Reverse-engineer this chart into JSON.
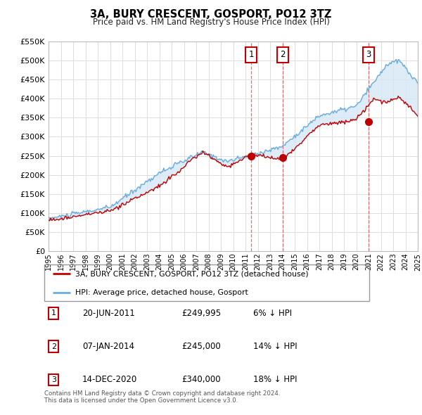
{
  "title": "3A, BURY CRESCENT, GOSPORT, PO12 3TZ",
  "subtitle": "Price paid vs. HM Land Registry's House Price Index (HPI)",
  "ylabel_ticks": [
    "£0",
    "£50K",
    "£100K",
    "£150K",
    "£200K",
    "£250K",
    "£300K",
    "£350K",
    "£400K",
    "£450K",
    "£500K",
    "£550K"
  ],
  "ytick_values": [
    0,
    50000,
    100000,
    150000,
    200000,
    250000,
    300000,
    350000,
    400000,
    450000,
    500000,
    550000
  ],
  "hpi_color": "#6aacde",
  "price_color": "#c00000",
  "fill_color": "#d6e8f5",
  "vline_color": "#e06060",
  "transactions": [
    {
      "x": 2011.47,
      "price": 249995,
      "label": "1"
    },
    {
      "x": 2014.02,
      "price": 245000,
      "label": "2"
    },
    {
      "x": 2021.0,
      "price": 340000,
      "label": "3"
    }
  ],
  "transaction_table": [
    {
      "num": "1",
      "date": "20-JUN-2011",
      "price": "£249,995",
      "change": "6% ↓ HPI"
    },
    {
      "num": "2",
      "date": "07-JAN-2014",
      "price": "£245,000",
      "change": "14% ↓ HPI"
    },
    {
      "num": "3",
      "date": "14-DEC-2020",
      "price": "£340,000",
      "change": "18% ↓ HPI"
    }
  ],
  "legend_entries": [
    "3A, BURY CRESCENT, GOSPORT, PO12 3TZ (detached house)",
    "HPI: Average price, detached house, Gosport"
  ],
  "footnote": "Contains HM Land Registry data © Crown copyright and database right 2024.\nThis data is licensed under the Open Government Licence v3.0.",
  "xmin": 1995,
  "xmax": 2025,
  "ymin": 0,
  "ymax": 550000,
  "fig_width": 6.0,
  "fig_height": 5.9
}
